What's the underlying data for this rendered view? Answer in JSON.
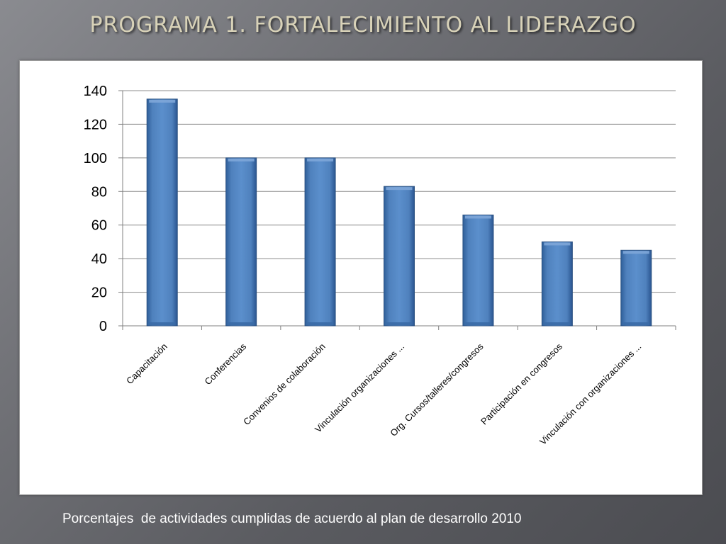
{
  "title": "PROGRAMA 1. FORTALECIMIENTO AL LIDERAZGO",
  "caption": "Porcentajes  de actividades cumplidas de acuerdo al plan de desarrollo 2010",
  "colors": {
    "bar": "#4f81bd",
    "bar_dark": "#2c5282",
    "grid": "#8c8c8c",
    "axis": "#808080",
    "text": "#000000"
  },
  "chart_data": {
    "type": "bar",
    "categories": [
      "Capacitación",
      "Conferencias",
      "Convenios de colaboración",
      "Vinculación organizaciones ...",
      "Org. Cursos/talleres/congresos",
      "Participación en congresos",
      "Vinculación con organizaciones ..."
    ],
    "values": [
      135,
      100,
      100,
      83,
      66,
      50,
      45
    ],
    "yticks": [
      0,
      20,
      40,
      60,
      80,
      100,
      120,
      140
    ],
    "ylim": [
      0,
      140
    ],
    "grid": true,
    "legend": "none"
  }
}
